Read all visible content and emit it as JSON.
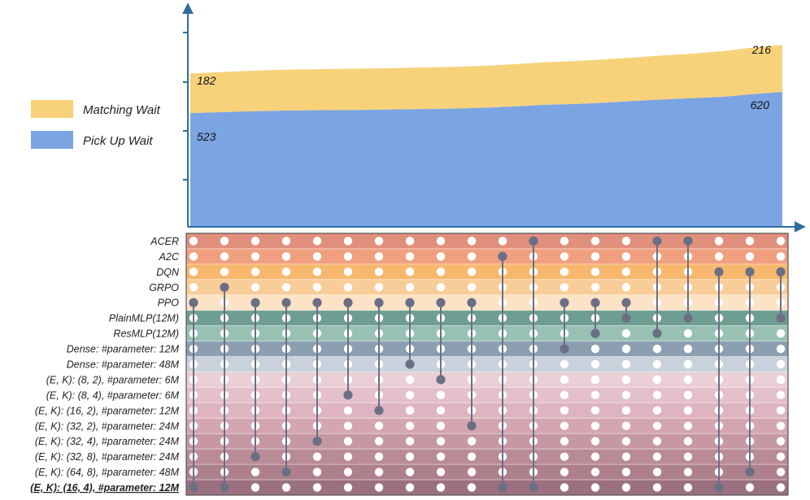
{
  "chart_data": {
    "type": "area",
    "subtype": "stacked-area-with-upset-matrix",
    "series": [
      {
        "name": "Pick Up Wait",
        "color": "#7ba4e3",
        "values": [
          523,
          527,
          531,
          534,
          536,
          537,
          538,
          540,
          542,
          544,
          548,
          554,
          561,
          565,
          571,
          579,
          586,
          592,
          598,
          610,
          620
        ]
      },
      {
        "name": "Matching Wait",
        "color": "#f7d27a",
        "values": [
          182,
          184,
          186,
          188,
          188,
          189,
          190,
          190,
          191,
          192,
          193,
          194,
          196,
          197,
          199,
          200,
          202,
          204,
          210,
          214,
          216
        ]
      }
    ],
    "annotations": [
      {
        "series": "Matching Wait",
        "position": "first",
        "text": "182"
      },
      {
        "series": "Pick Up Wait",
        "position": "first",
        "text": "523"
      },
      {
        "series": "Matching Wait",
        "position": "last",
        "text": "216"
      },
      {
        "series": "Pick Up Wait",
        "position": "last",
        "text": "620"
      }
    ],
    "ylim": [
      0,
      1000
    ],
    "legend": {
      "position": "left",
      "entries": [
        "Matching Wait",
        "Pick Up Wait"
      ]
    },
    "matrix": {
      "rows": [
        {
          "label": "ACER",
          "color": "#e08f7c"
        },
        {
          "label": "A2C",
          "color": "#f0a07e"
        },
        {
          "label": "DQN",
          "color": "#f7b86e"
        },
        {
          "label": "GRPO",
          "color": "#f9cd98"
        },
        {
          "label": "PPO",
          "color": "#fce3c6"
        },
        {
          "label": "PlainMLP(12M)",
          "color": "#6e9e91"
        },
        {
          "label": "ResMLP(12M)",
          "color": "#98c1b4"
        },
        {
          "label": "Dense: #parameter: 12M",
          "color": "#8c9fb0"
        },
        {
          "label": "Dense: #parameter: 48M",
          "color": "#c9d2dc"
        },
        {
          "label": "(E, K): (8, 2), #parameter: 6M",
          "color": "#eacfd7"
        },
        {
          "label": "(E, K): (8, 4), #parameter: 6M",
          "color": "#e3c0cb"
        },
        {
          "label": "(E, K): (16, 2), #parameter: 12M",
          "color": "#ddb4bf"
        },
        {
          "label": "(E, K): (32, 2), #parameter: 24M",
          "color": "#d3a6b1"
        },
        {
          "label": "(E, K): (32, 4), #parameter: 24M",
          "color": "#c698a3"
        },
        {
          "label": "(E, K): (32, 8), #parameter: 24M",
          "color": "#b98b97"
        },
        {
          "label": "(E, K): (64, 8), #parameter: 48M",
          "color": "#ad808c"
        },
        {
          "label": "(E, K): (16, 4), #parameter: 12M",
          "color": "#9b7080",
          "bold": true
        }
      ],
      "columns": [
        [
          4,
          16
        ],
        [
          3,
          16
        ],
        [
          4,
          14
        ],
        [
          4,
          15
        ],
        [
          4,
          13
        ],
        [
          4,
          10
        ],
        [
          4,
          11
        ],
        [
          4,
          8
        ],
        [
          4,
          9
        ],
        [
          4,
          12
        ],
        [
          1,
          16
        ],
        [
          0,
          16
        ],
        [
          4,
          7
        ],
        [
          4,
          6
        ],
        [
          4,
          5
        ],
        [
          0,
          6
        ],
        [
          0,
          5
        ],
        [
          2,
          16
        ],
        [
          2,
          15
        ],
        [
          2,
          5
        ]
      ]
    }
  }
}
